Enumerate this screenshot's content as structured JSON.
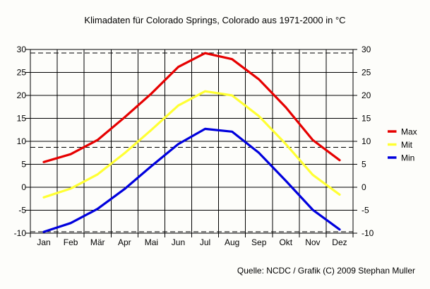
{
  "title": "Klimadaten für Colorado Springs, Colorado aus 1971-2000 in °C",
  "footer": "Quelle: NCDC / Grafik (C) 2009 Stephan Muller",
  "colors": {
    "max_line": "#e60000",
    "mit_line": "#ffff33",
    "min_line": "#0000dd",
    "grid": "#000000",
    "background": "#fdfdfa"
  },
  "chart_data": {
    "type": "line",
    "title": "Klimadaten für Colorado Springs, Colorado aus 1971-2000 in °C",
    "categories": [
      "Jan",
      "Feb",
      "Mär",
      "Apr",
      "Mai",
      "Jun",
      "Jul",
      "Aug",
      "Sep",
      "Okt",
      "Nov",
      "Dez"
    ],
    "series": [
      {
        "name": "Max",
        "color": "#e60000",
        "values": [
          5.5,
          7.2,
          10.3,
          15.2,
          20.4,
          26.2,
          29.2,
          27.9,
          23.5,
          17.4,
          10.3,
          5.9
        ]
      },
      {
        "name": "Mit",
        "color": "#ffff33",
        "values": [
          -2.2,
          -0.3,
          2.8,
          7.4,
          12.5,
          17.8,
          20.9,
          20.0,
          15.5,
          9.4,
          2.7,
          -1.6
        ]
      },
      {
        "name": "Min",
        "color": "#0000dd",
        "values": [
          -9.7,
          -7.8,
          -4.7,
          -0.4,
          4.6,
          9.4,
          12.7,
          12.1,
          7.5,
          1.4,
          -4.9,
          -9.2
        ]
      }
    ],
    "reference_lines": [
      {
        "name": "absolute-max",
        "value": 29.2
      },
      {
        "name": "annual-mean",
        "value": 8.7
      },
      {
        "name": "absolute-min",
        "value": -9.7
      }
    ],
    "ylabel": "",
    "xlabel": "",
    "ylim": [
      -10,
      30
    ],
    "ytick_step": 5,
    "grid": true,
    "legend_position": "right"
  }
}
